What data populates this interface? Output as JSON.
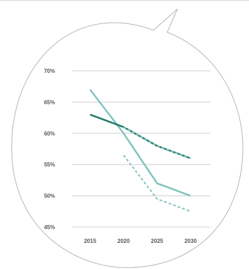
{
  "chart_data": {
    "type": "line",
    "title": "",
    "xlabel": "",
    "ylabel": "",
    "x": [
      2015,
      2020,
      2025,
      2030
    ],
    "x_tick_labels": [
      "2015",
      "2020",
      "2025",
      "2030"
    ],
    "y_tick_labels": [
      "70%",
      "65%",
      "60%",
      "55%",
      "50%",
      "45%"
    ],
    "y_ticks": [
      70,
      65,
      60,
      55,
      50,
      45
    ],
    "ylim": [
      45,
      70
    ],
    "xlim": [
      2015,
      2030
    ],
    "grid": "horizontal",
    "legend": "none",
    "series": [
      {
        "style": "solid",
        "color": "#7fc4bd",
        "points": [
          [
            2015,
            67
          ],
          [
            2020,
            60
          ],
          [
            2025,
            52
          ],
          [
            2030,
            50
          ]
        ]
      },
      {
        "style": "dashed",
        "color": "#7fc4bd",
        "points": [
          [
            2020,
            56.5
          ],
          [
            2025,
            49.5
          ],
          [
            2030,
            47.5
          ]
        ]
      },
      {
        "style": "solid",
        "color": "#1f7a6a",
        "points": [
          [
            2015,
            63
          ],
          [
            2020,
            61
          ],
          [
            2025,
            58
          ],
          [
            2030,
            56
          ]
        ]
      },
      {
        "style": "dashed",
        "color": "#7fc4bd",
        "points": [
          [
            2020,
            61
          ],
          [
            2025,
            58
          ],
          [
            2030,
            56
          ]
        ]
      }
    ]
  },
  "colors": {
    "gridline": "#cfcfcf",
    "bubble_outline": "#b5b5b5",
    "top_rule": "#d4d4d4"
  }
}
